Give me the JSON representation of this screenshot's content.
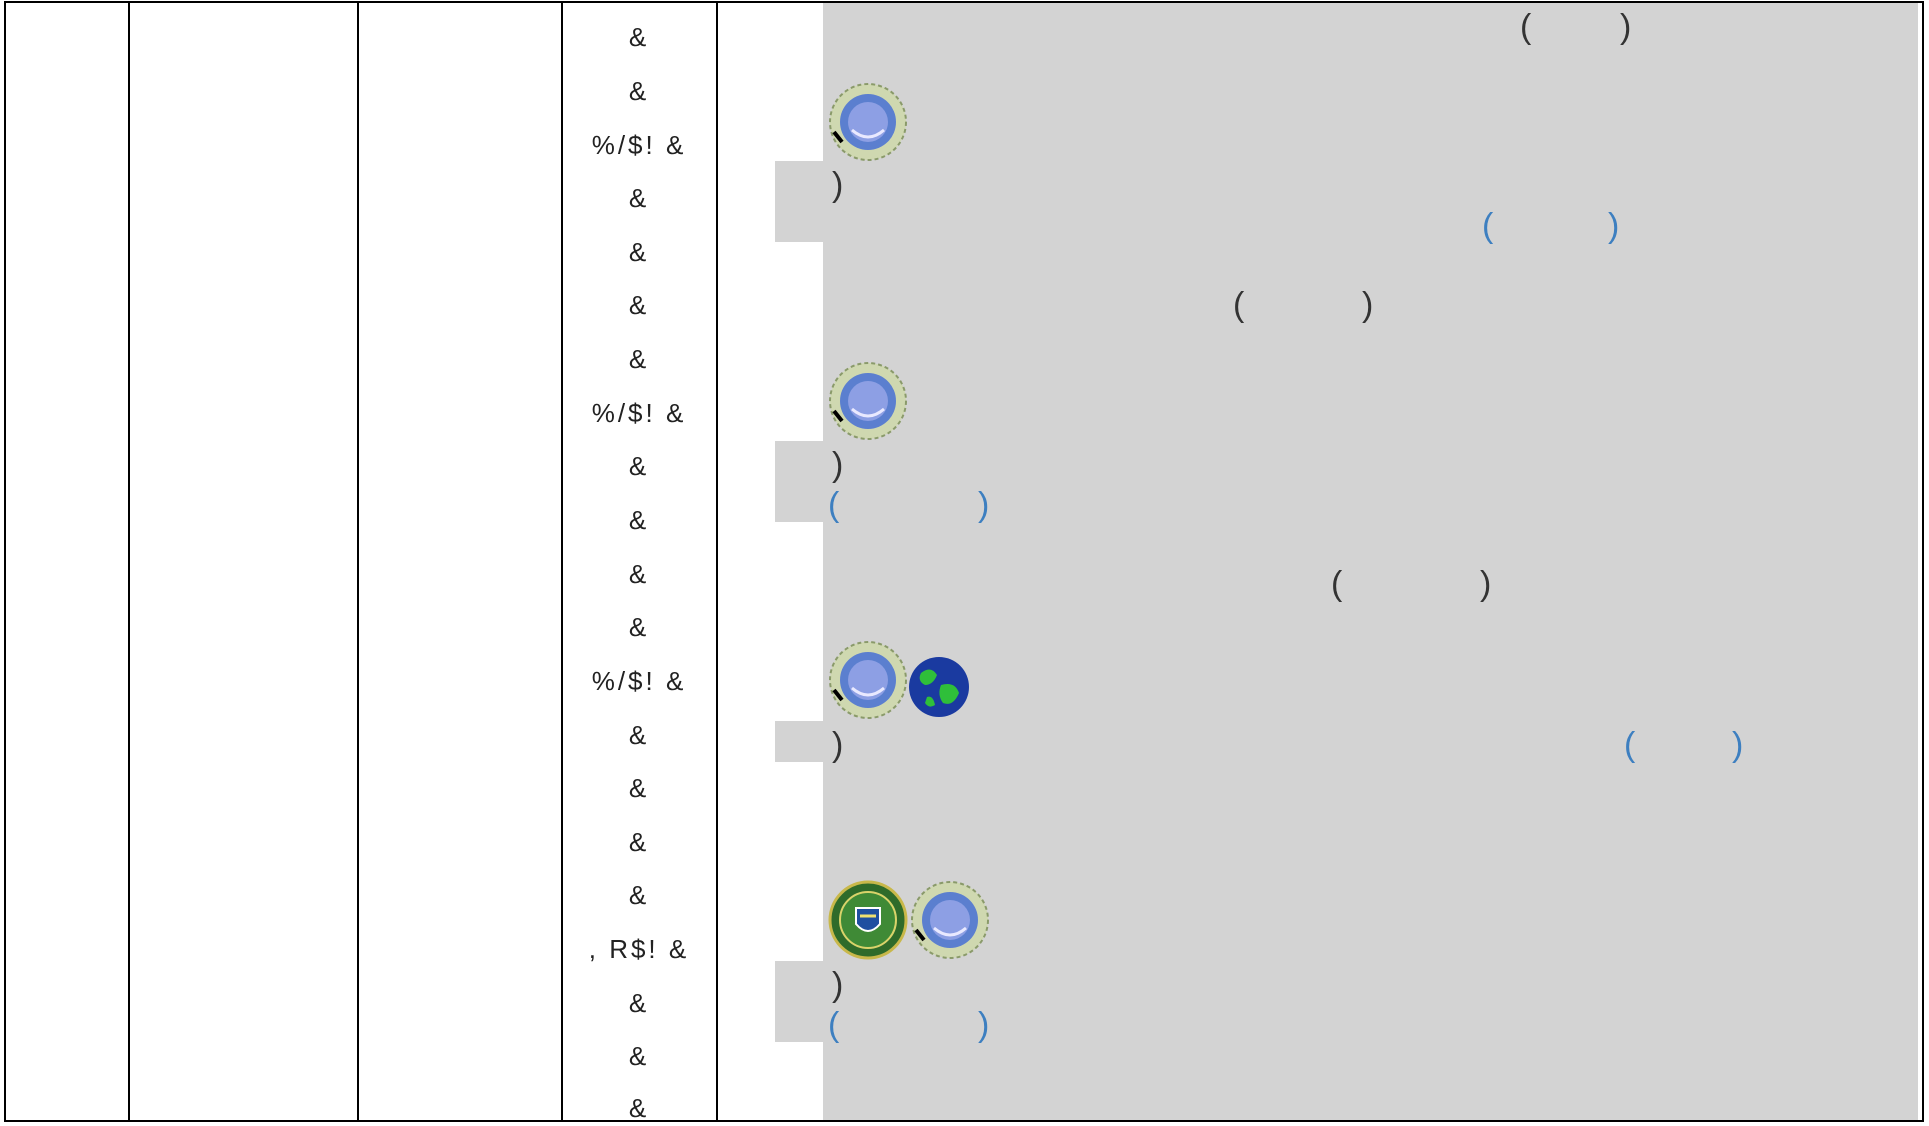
{
  "amp_col": [
    "&",
    "&",
    "%/$! &",
    "&",
    "&",
    "&",
    "&",
    "%/$! &",
    "&",
    "&",
    "&",
    "&",
    "%/$! &",
    "&",
    "&",
    "&",
    "&",
    ", R$! &",
    "&",
    "&",
    "&"
  ],
  "parens": {
    "open": "(",
    "close": ")"
  },
  "colors": {
    "panel": "#d3d3d3",
    "link": "#3d7fc0",
    "text": "#333333"
  },
  "icons": [
    "seal-icon",
    "globe-icon",
    "shield-seal-icon"
  ]
}
